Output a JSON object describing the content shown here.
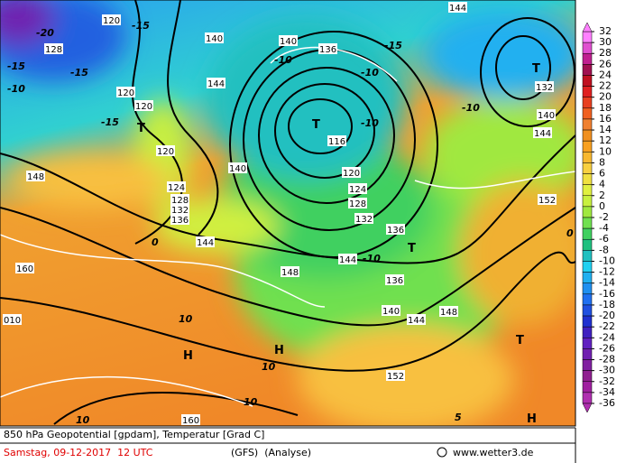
{
  "footer": {
    "line1": "850 hPa Geopotential [gpdam], Temperatur [Grad C]",
    "date": "Samstag, 09-12-2017  12 UTC",
    "model": "(GFS)  (Analyse)",
    "source": "www.wetter3.de"
  },
  "colorbar": {
    "ticks": [
      32,
      30,
      28,
      26,
      24,
      22,
      20,
      18,
      16,
      14,
      12,
      10,
      8,
      6,
      4,
      2,
      0,
      -2,
      -4,
      -6,
      -8,
      -10,
      -12,
      -14,
      -16,
      -18,
      -20,
      -22,
      -24,
      -26,
      -28,
      -30,
      -32,
      -34,
      -36
    ],
    "colors": [
      "#ff80ff",
      "#e050d0",
      "#c02090",
      "#a01050",
      "#c01020",
      "#e02020",
      "#e84020",
      "#f06020",
      "#f08030",
      "#f09020",
      "#f8a020",
      "#f8b830",
      "#f8d040",
      "#f0e040",
      "#e0f040",
      "#c8f040",
      "#a0e840",
      "#70e050",
      "#40d060",
      "#20c080",
      "#20c0c0",
      "#20d0f0",
      "#20b0f0",
      "#2090f0",
      "#2070f0",
      "#2050e0",
      "#2030d0",
      "#4020c0",
      "#6020c0",
      "#7020b0",
      "#8020a0",
      "#902090",
      "#a020a0",
      "#b030b0"
    ]
  },
  "map_labels": [
    "-20",
    "-15",
    "120",
    "128",
    "-15",
    "-10",
    "-15",
    "-15",
    "T",
    "120",
    "120",
    "120",
    "124",
    "128",
    "132",
    "136",
    "148",
    "160",
    "010",
    "10",
    "H",
    "0",
    "144",
    "140",
    "144",
    "140",
    "140",
    "-10",
    "T",
    "116",
    "120",
    "124",
    "128",
    "132",
    "-10",
    "-10",
    "136",
    "T",
    "144",
    "-10",
    "148",
    "136",
    "140",
    "144",
    "148",
    "152",
    "160",
    "10",
    "10",
    "10",
    "H",
    "144",
    "T",
    "132",
    "140",
    "144",
    "-10",
    "152",
    "0",
    "T",
    "H",
    "5",
    "-15",
    "136"
  ]
}
